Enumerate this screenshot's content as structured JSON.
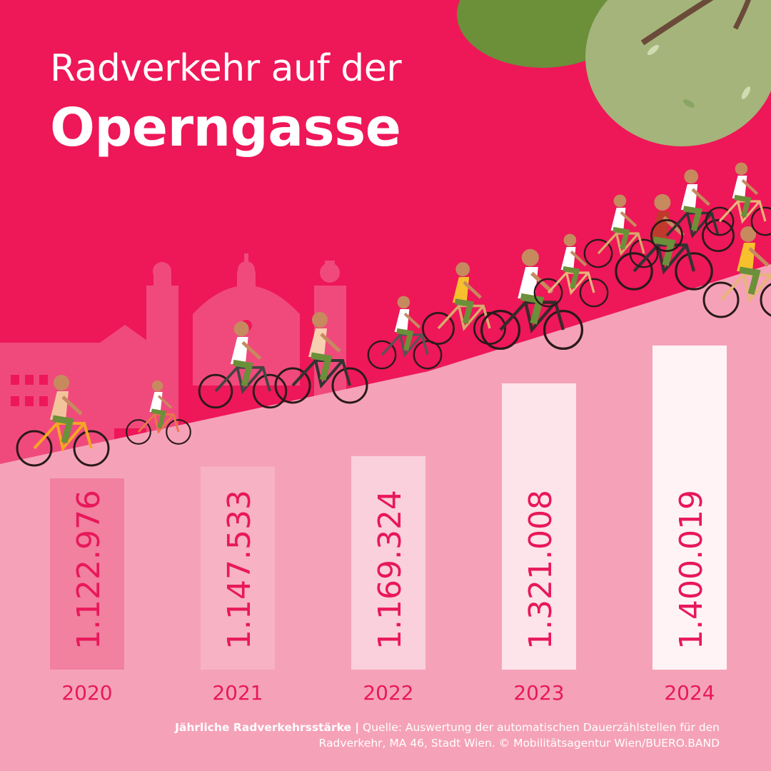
{
  "title": {
    "line1": "Radverkehr auf der",
    "line2": "Operngasse"
  },
  "colors": {
    "background_top": "#ee1758",
    "ground": "#f5a2b8",
    "value_text": "#e8185a",
    "skyline": "#f04a7c",
    "tree_dark": "#6c8f3a",
    "tree_light": "#a4b47a"
  },
  "chart_data": {
    "type": "bar",
    "categories": [
      "2020",
      "2021",
      "2022",
      "2023",
      "2024"
    ],
    "values": [
      1122976,
      1147533,
      1169324,
      1321008,
      1400019
    ],
    "value_labels": [
      "1.122.976",
      "1.147.533",
      "1.169.324",
      "1.321.008",
      "1.400.019"
    ],
    "bar_fills": [
      "#f2809f",
      "#f7b2c4",
      "#fad0dc",
      "#fde3ea",
      "#fff3f6"
    ],
    "title": "",
    "xlabel": "",
    "ylabel": "",
    "grid": false,
    "legend": "none"
  },
  "source": {
    "label": "Jährliche Radverkehrsstärke |",
    "text": "Quelle: Auswertung der automatischen Dauerzählstellen für den Radverkehr, MA 46, Stadt Wien. © Mobilitätsagentur Wien/BUERO.BAND"
  },
  "decor": {
    "skyline_icon": "building-skyline",
    "tree_icon": "tree-canopy",
    "cyclist_icon": "cyclist"
  }
}
